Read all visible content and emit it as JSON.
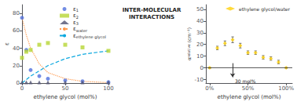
{
  "chart_data": [
    {
      "type": "line",
      "x": [
        0,
        5,
        10,
        20,
        30,
        50,
        70,
        100
      ],
      "series": [
        {
          "name": "ε1",
          "type": "scatter",
          "marker": "circle",
          "values": [
            75,
            38,
            15,
            8,
            5,
            3,
            2,
            1
          ]
        },
        {
          "name": "ε2",
          "type": "scatter",
          "marker": "square",
          "values": [
            29,
            36,
            38,
            44,
            46,
            44,
            41,
            37
          ]
        },
        {
          "name": "ε3",
          "type": "scatter",
          "marker": "triangle",
          "values": [
            1,
            1,
            1,
            1,
            1,
            1,
            1,
            1
          ]
        },
        {
          "name": "εwater",
          "type": "line",
          "line_style": "dotted",
          "values": [
            75,
            55,
            40,
            22,
            12,
            5,
            2,
            0.5
          ]
        },
        {
          "name": "εethylene glycol",
          "type": "line",
          "line_style": "dashed",
          "values": [
            0,
            4,
            8,
            14,
            20,
            28,
            33,
            37
          ]
        }
      ],
      "xlabel": "ethylene glycol (mol%)",
      "ylabel": "ε",
      "xlim": [
        0,
        100
      ],
      "xticks": [
        0,
        50,
        100
      ],
      "ylim": [
        0,
        90
      ],
      "yticks": [
        0,
        20,
        40,
        60,
        80
      ],
      "grid": false,
      "legend": "upper right"
    },
    {
      "type": "text",
      "title": "INTER-MOLECULAR\nINTERACTIONS"
    },
    {
      "type": "scatter",
      "x": [
        0,
        10,
        20,
        30,
        40,
        50,
        60,
        70,
        80,
        90,
        100
      ],
      "series": [
        {
          "name": "ethylene glycol/water",
          "marker": "diamond",
          "values": [
            0,
            17,
            21,
            24,
            19,
            13,
            13,
            9,
            8,
            5,
            0
          ],
          "yerr": [
            0.5,
            1.5,
            2.0,
            2.5,
            2.0,
            1.5,
            1.5,
            1.5,
            1.5,
            1.5,
            0.5
          ]
        }
      ],
      "xlabel": "ethylene glycol (mol%)",
      "ylabel": "αrelative (cm⁻¹)",
      "xlim": [
        -5,
        108
      ],
      "xticks": [
        {
          "value": 0,
          "label": "0%"
        },
        {
          "value": 50,
          "label": "50%"
        },
        {
          "value": 100,
          "label": "100%"
        }
      ],
      "ylim": [
        -13,
        54
      ],
      "yticks": [
        -10,
        0,
        10,
        20,
        30,
        40,
        50
      ],
      "hline": 0,
      "annotations": [
        {
          "text": "30 mol%",
          "x": 33,
          "y": -9.5,
          "arrow": {
            "x": 30,
            "y": [
              4,
              -8
            ]
          }
        }
      ],
      "grid": false,
      "legend": "upper right"
    }
  ]
}
